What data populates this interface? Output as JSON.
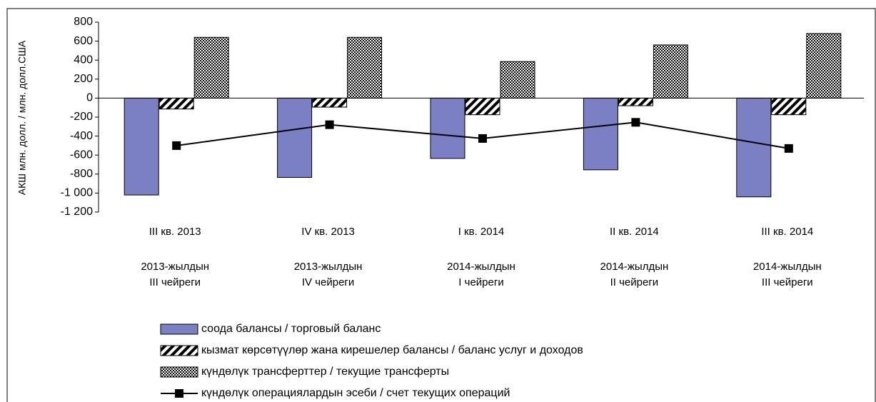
{
  "chart_data": {
    "type": "bar",
    "y_label": "АКШ млн. долл. / млн. долл.США",
    "categories": [
      "III кв. 2013",
      "IV кв. 2013",
      "I кв. 2014",
      "II кв. 2014",
      "III кв. 2014"
    ],
    "category_sublabels": [
      [
        "2013-жылдын",
        "III чейреги"
      ],
      [
        "2013-жылдын",
        "IV чейреги"
      ],
      [
        "2014-жылдын",
        "I чейреги"
      ],
      [
        "2014-жылдын",
        "II чейреги"
      ],
      [
        "2014-жылдын",
        "III чейреги"
      ]
    ],
    "series": [
      {
        "name": "соода балансы / торговый баланс",
        "type": "bar",
        "color": "#7b7fc4",
        "pattern": "solid",
        "values": [
          -1020,
          -835,
          -635,
          -755,
          -1040
        ]
      },
      {
        "name": "кызмат көрсөтүүлөр жана кирешелер балансы / баланс услуг и доходов",
        "type": "bar",
        "color": "#000000",
        "pattern": "diagonal",
        "values": [
          -115,
          -95,
          -175,
          -80,
          -175
        ]
      },
      {
        "name": "күндөлүк трансферттер / текущие трансферты",
        "type": "bar",
        "color": "#000000",
        "pattern": "checker",
        "values": [
          640,
          640,
          385,
          560,
          680
        ]
      },
      {
        "name": "күндөлүк операциялардын эсеби / счет текущих операций",
        "type": "line",
        "color": "#000000",
        "values": [
          -500,
          -280,
          -425,
          -255,
          -530
        ]
      }
    ],
    "ylim": [
      -1200,
      800
    ],
    "yticks": [
      {
        "value": -1200,
        "label": "-1 200"
      },
      {
        "value": -1000,
        "label": "-1 000"
      },
      -800,
      -600,
      -400,
      -200,
      0,
      200,
      400,
      600,
      800
    ],
    "grid": false,
    "legend": "bottom"
  }
}
